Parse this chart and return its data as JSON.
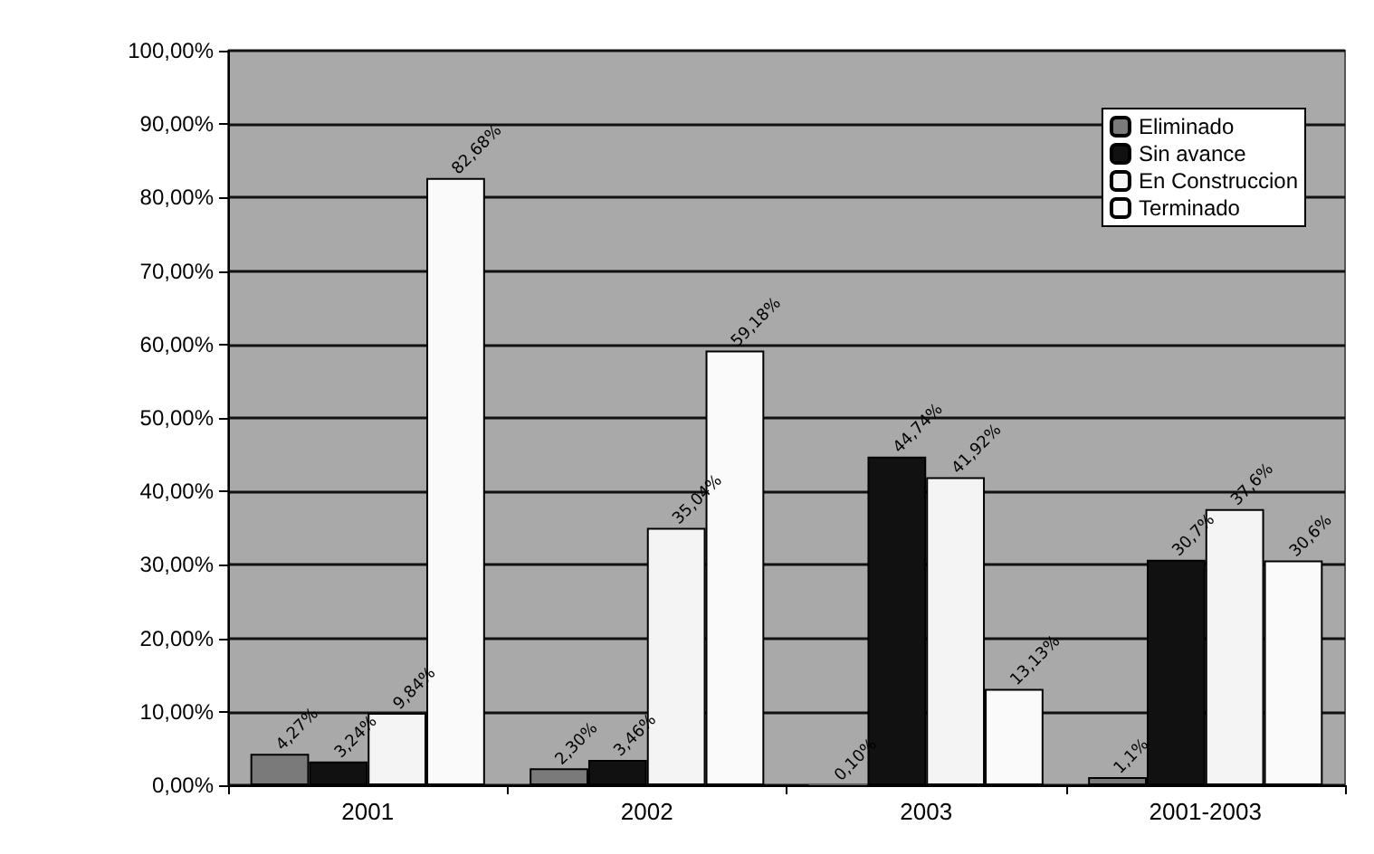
{
  "chart_data": {
    "type": "bar",
    "categories": [
      "2001",
      "2002",
      "2003",
      "2001-2003"
    ],
    "series": [
      {
        "name": "Eliminado",
        "color": "#7a7a7a",
        "values": [
          4.27,
          2.3,
          0.1,
          1.1
        ],
        "value_labels": [
          "4,27%",
          "2,30%",
          "0,10%",
          "1,1%"
        ]
      },
      {
        "name": "Sin avance",
        "color": "#111111",
        "values": [
          3.24,
          3.46,
          44.74,
          30.7
        ],
        "value_labels": [
          "3,24%",
          "3,46%",
          "44,74%",
          "30,7%"
        ]
      },
      {
        "name": "En Construccion",
        "color": "#f4f4f4",
        "values": [
          9.84,
          35.04,
          41.92,
          37.6
        ],
        "value_labels": [
          "9,84%",
          "35,04%",
          "41,92%",
          "37,6%"
        ]
      },
      {
        "name": "Terminado",
        "color": "#fafafa",
        "values": [
          82.68,
          59.18,
          13.13,
          30.6
        ],
        "value_labels": [
          "82,68%",
          "59,18%",
          "13,13%",
          "30,6%"
        ]
      }
    ],
    "ylim": [
      0,
      100
    ],
    "yticks": [
      {
        "value": 0,
        "label": "0,00%"
      },
      {
        "value": 10,
        "label": "10,00%"
      },
      {
        "value": 20,
        "label": "20,00%"
      },
      {
        "value": 30,
        "label": "30,00%"
      },
      {
        "value": 40,
        "label": "40,00%"
      },
      {
        "value": 50,
        "label": "50,00%"
      },
      {
        "value": 60,
        "label": "60,00%"
      },
      {
        "value": 70,
        "label": "70,00%"
      },
      {
        "value": 80,
        "label": "80,00%"
      },
      {
        "value": 90,
        "label": "90,00%"
      },
      {
        "value": 100,
        "label": "100,00%"
      }
    ],
    "grid": "y",
    "legend": "top right"
  }
}
